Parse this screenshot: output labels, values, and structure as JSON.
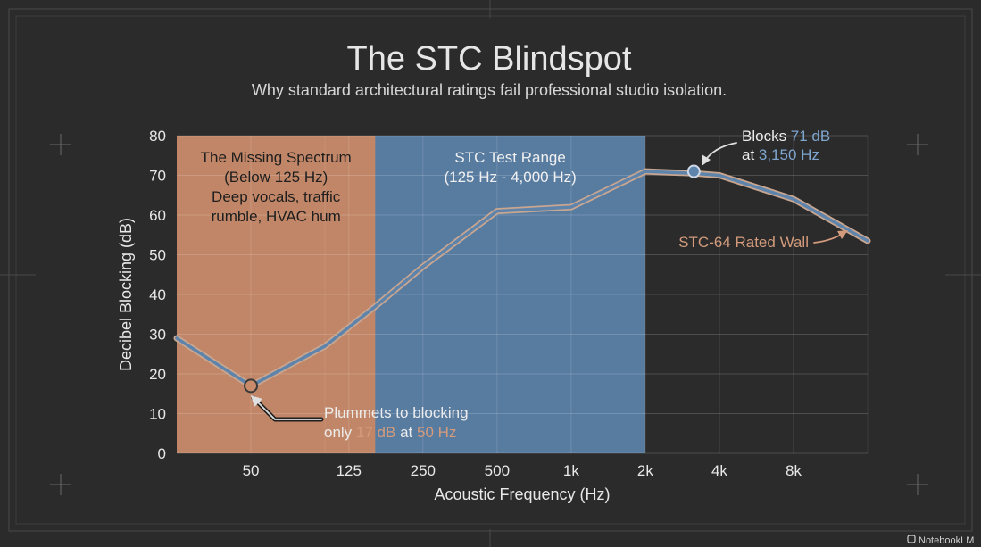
{
  "title": "The STC Blindspot",
  "subtitle": "Why standard architectural ratings fail professional studio isolation.",
  "brand": "NotebookLM",
  "colors": {
    "background": "#2b2b2b",
    "missing_region": "#c98b6a",
    "stc_region": "#5b7fa6",
    "line_outer": "#c9a690",
    "line_inner": "#5e84ac",
    "accent_blue": "#7ea6cf",
    "accent_orange": "#d39b7c"
  },
  "chart_data": {
    "type": "line",
    "xlabel": "Acoustic Frequency (Hz)",
    "ylabel": "Decibel Blocking (dB)",
    "ylim": [
      0,
      80
    ],
    "yticks": [
      0,
      10,
      20,
      30,
      40,
      50,
      60,
      70,
      80
    ],
    "x_scale": "log (octave)",
    "xlim": [
      25,
      16000
    ],
    "xticks": [
      {
        "value": 50,
        "label": "50"
      },
      {
        "value": 125,
        "label": "125"
      },
      {
        "value": 250,
        "label": "250"
      },
      {
        "value": 500,
        "label": "500"
      },
      {
        "value": 1000,
        "label": "1k"
      },
      {
        "value": 2000,
        "label": "2k"
      },
      {
        "value": 4000,
        "label": "4k"
      },
      {
        "value": 8000,
        "label": "8k"
      }
    ],
    "grid": true,
    "series": [
      {
        "name": "STC-64 Rated Wall",
        "x": [
          25,
          50,
          100,
          160,
          250,
          500,
          1000,
          2000,
          3150,
          4000,
          8000,
          16000
        ],
        "y": [
          29,
          17,
          27,
          37,
          47,
          61,
          62,
          71,
          70.5,
          70,
          64,
          53.5
        ]
      }
    ],
    "regions": [
      {
        "name": "missing",
        "x_range": [
          25,
          160
        ],
        "label_lines": [
          "The Missing Spectrum",
          "(Below 125 Hz)",
          "Deep vocals, traffic",
          "rumble, HVAC hum"
        ]
      },
      {
        "name": "stc",
        "x_range": [
          160,
          2000
        ],
        "label_lines": [
          "STC Test Range",
          "(125 Hz - 4,000 Hz)"
        ]
      }
    ],
    "annotations": {
      "low": {
        "x": 50,
        "y": 17,
        "line1": "Plummets to blocking",
        "line2_parts": [
          "only ",
          "17 dB",
          " at ",
          "50 Hz"
        ]
      },
      "high": {
        "x": 3150,
        "y": 71,
        "line1_parts": [
          "Blocks ",
          "71 dB"
        ],
        "line2_parts": [
          "at ",
          "3,150 Hz"
        ]
      },
      "series_label": "STC-64 Rated Wall"
    }
  }
}
